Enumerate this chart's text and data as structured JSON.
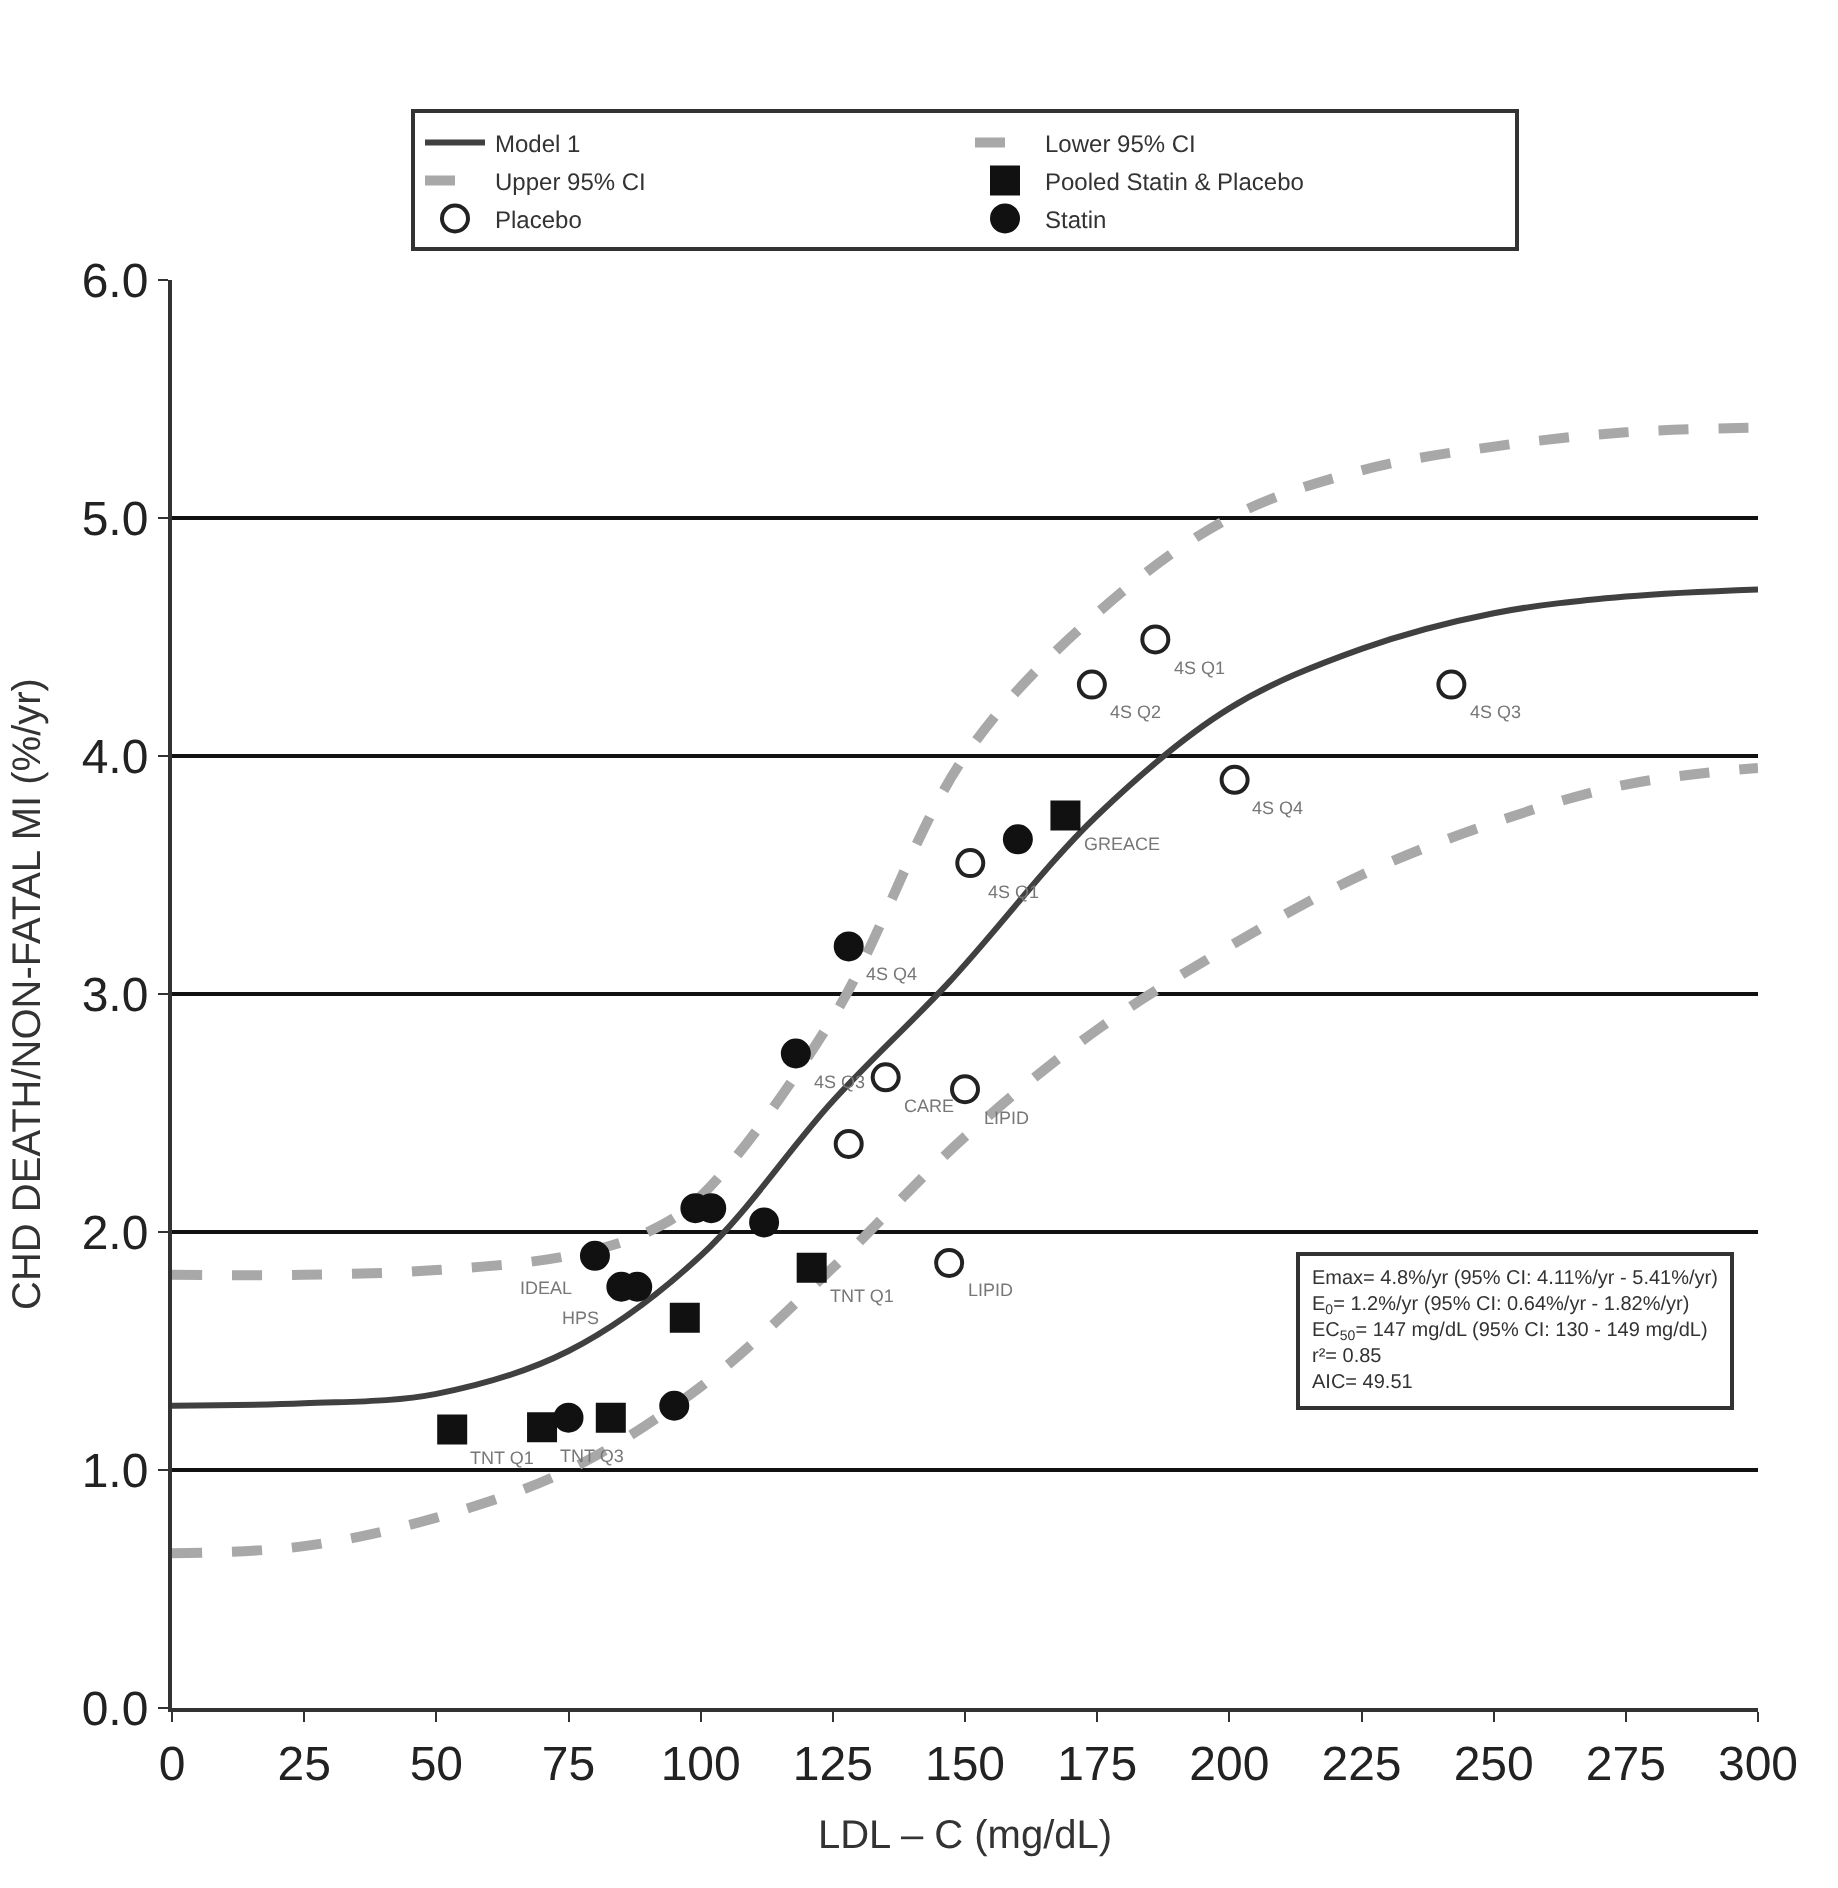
{
  "chart_data": {
    "type": "scatter",
    "xlabel": "LDL – C (mg/dL)",
    "ylabel": "CHD DEATH/NON-FATAL MI (%/yr)",
    "xlim": [
      0,
      300
    ],
    "xticks": [
      0,
      25,
      50,
      75,
      100,
      125,
      150,
      175,
      200,
      225,
      250,
      275,
      300
    ],
    "ylim": [
      0,
      6
    ],
    "yticks": [
      {
        "value": 0,
        "label": "0.0"
      },
      {
        "value": 1,
        "label": "1.0"
      },
      {
        "value": 2,
        "label": "2.0"
      },
      {
        "value": 3,
        "label": "3.0"
      },
      {
        "value": 4,
        "label": "4.0"
      },
      {
        "value": 5,
        "label": "5.0"
      },
      {
        "value": 6,
        "label": "6.0"
      }
    ],
    "grid": "y",
    "legend": "top",
    "series": [
      {
        "name": "Model 1",
        "type": "line",
        "line_style": "solid",
        "color": "#404040",
        "x": [
          0,
          25,
          50,
          75,
          100,
          125,
          147,
          175,
          200,
          225,
          250,
          275,
          300
        ],
        "values": [
          1.27,
          1.28,
          1.32,
          1.5,
          1.9,
          2.55,
          3.05,
          3.75,
          4.2,
          4.45,
          4.6,
          4.67,
          4.7
        ]
      },
      {
        "name": "Lower 95% CI",
        "type": "line",
        "line_style": "dashed",
        "color": "#a8a8a8",
        "x": [
          0,
          25,
          50,
          75,
          100,
          125,
          150,
          175,
          200,
          225,
          250,
          275,
          300
        ],
        "values": [
          0.65,
          0.68,
          0.8,
          1.0,
          1.35,
          1.85,
          2.4,
          2.85,
          3.2,
          3.5,
          3.72,
          3.88,
          3.95
        ]
      },
      {
        "name": "Upper 95% CI",
        "type": "line",
        "line_style": "dashed",
        "color": "#a8a8a8",
        "x": [
          0,
          25,
          50,
          75,
          90,
          100,
          125,
          150,
          175,
          200,
          225,
          250,
          275,
          300
        ],
        "values": [
          1.82,
          1.82,
          1.84,
          1.9,
          2.0,
          2.15,
          2.9,
          4.0,
          4.6,
          5.0,
          5.2,
          5.3,
          5.36,
          5.38
        ]
      },
      {
        "name": "Pooled Statin & Placebo",
        "marker": "square",
        "color": "#111111",
        "x": [
          53,
          70,
          83,
          97,
          121,
          169
        ],
        "values": [
          1.17,
          1.18,
          1.22,
          1.64,
          1.85,
          3.75
        ]
      },
      {
        "name": "Placebo",
        "marker": "circle-open",
        "color": "#222222",
        "x": [
          186,
          174,
          242,
          201,
          151,
          135,
          150,
          128,
          147
        ],
        "values": [
          4.49,
          4.3,
          4.3,
          3.9,
          3.55,
          2.65,
          2.6,
          2.37,
          1.87
        ]
      },
      {
        "name": "Statin",
        "marker": "circle",
        "color": "#111111",
        "x": [
          160,
          128,
          118,
          99,
          102,
          112,
          80,
          85,
          88,
          75,
          95
        ],
        "values": [
          3.65,
          3.2,
          2.75,
          2.1,
          2.1,
          2.04,
          1.9,
          1.77,
          1.77,
          1.22,
          1.27
        ]
      }
    ],
    "annotations": [
      {
        "text": "4S Q1",
        "x": 186,
        "y": 4.49
      },
      {
        "text": "4S Q2",
        "x": 174,
        "y": 4.3
      },
      {
        "text": "4S Q3",
        "x": 242,
        "y": 4.3
      },
      {
        "text": "4S Q4",
        "x": 201,
        "y": 3.9
      },
      {
        "text": "4S Q4",
        "x": 128,
        "y": 3.2
      },
      {
        "text": "4S Q3",
        "x": 118,
        "y": 2.75
      },
      {
        "text": "4S Q1",
        "x": 151,
        "y": 3.55
      },
      {
        "text": "GREACE",
        "x": 169,
        "y": 3.75
      },
      {
        "text": "TNT Q1",
        "x": 53,
        "y": 1.17
      },
      {
        "text": "TNT Q3",
        "x": 70,
        "y": 1.18
      },
      {
        "text": "TNT Q1",
        "x": 121,
        "y": 1.85
      },
      {
        "text": "LIPID",
        "x": 147,
        "y": 1.87
      },
      {
        "text": "CARE",
        "x": 135,
        "y": 2.65
      },
      {
        "text": "LIPID",
        "x": 150,
        "y": 2.6
      },
      {
        "text": "IDEAL",
        "x": 80,
        "y": 1.9
      },
      {
        "text": "HPS",
        "x": 85,
        "y": 1.77
      },
      {
        "text": "Emax= 4.8%/yr (95% CI: 4.11%/yr - 5.41%/yr)\nE$_{0}$= 1.2%/yr (95% CI: 0.64%/yr - 1.82%/yr)\nEC$_{50}$= 147 mg/dL (95% CI: 130 - 149 mg/dL)\nr²= 0.85\nAIC= 49.51"
      }
    ]
  }
}
